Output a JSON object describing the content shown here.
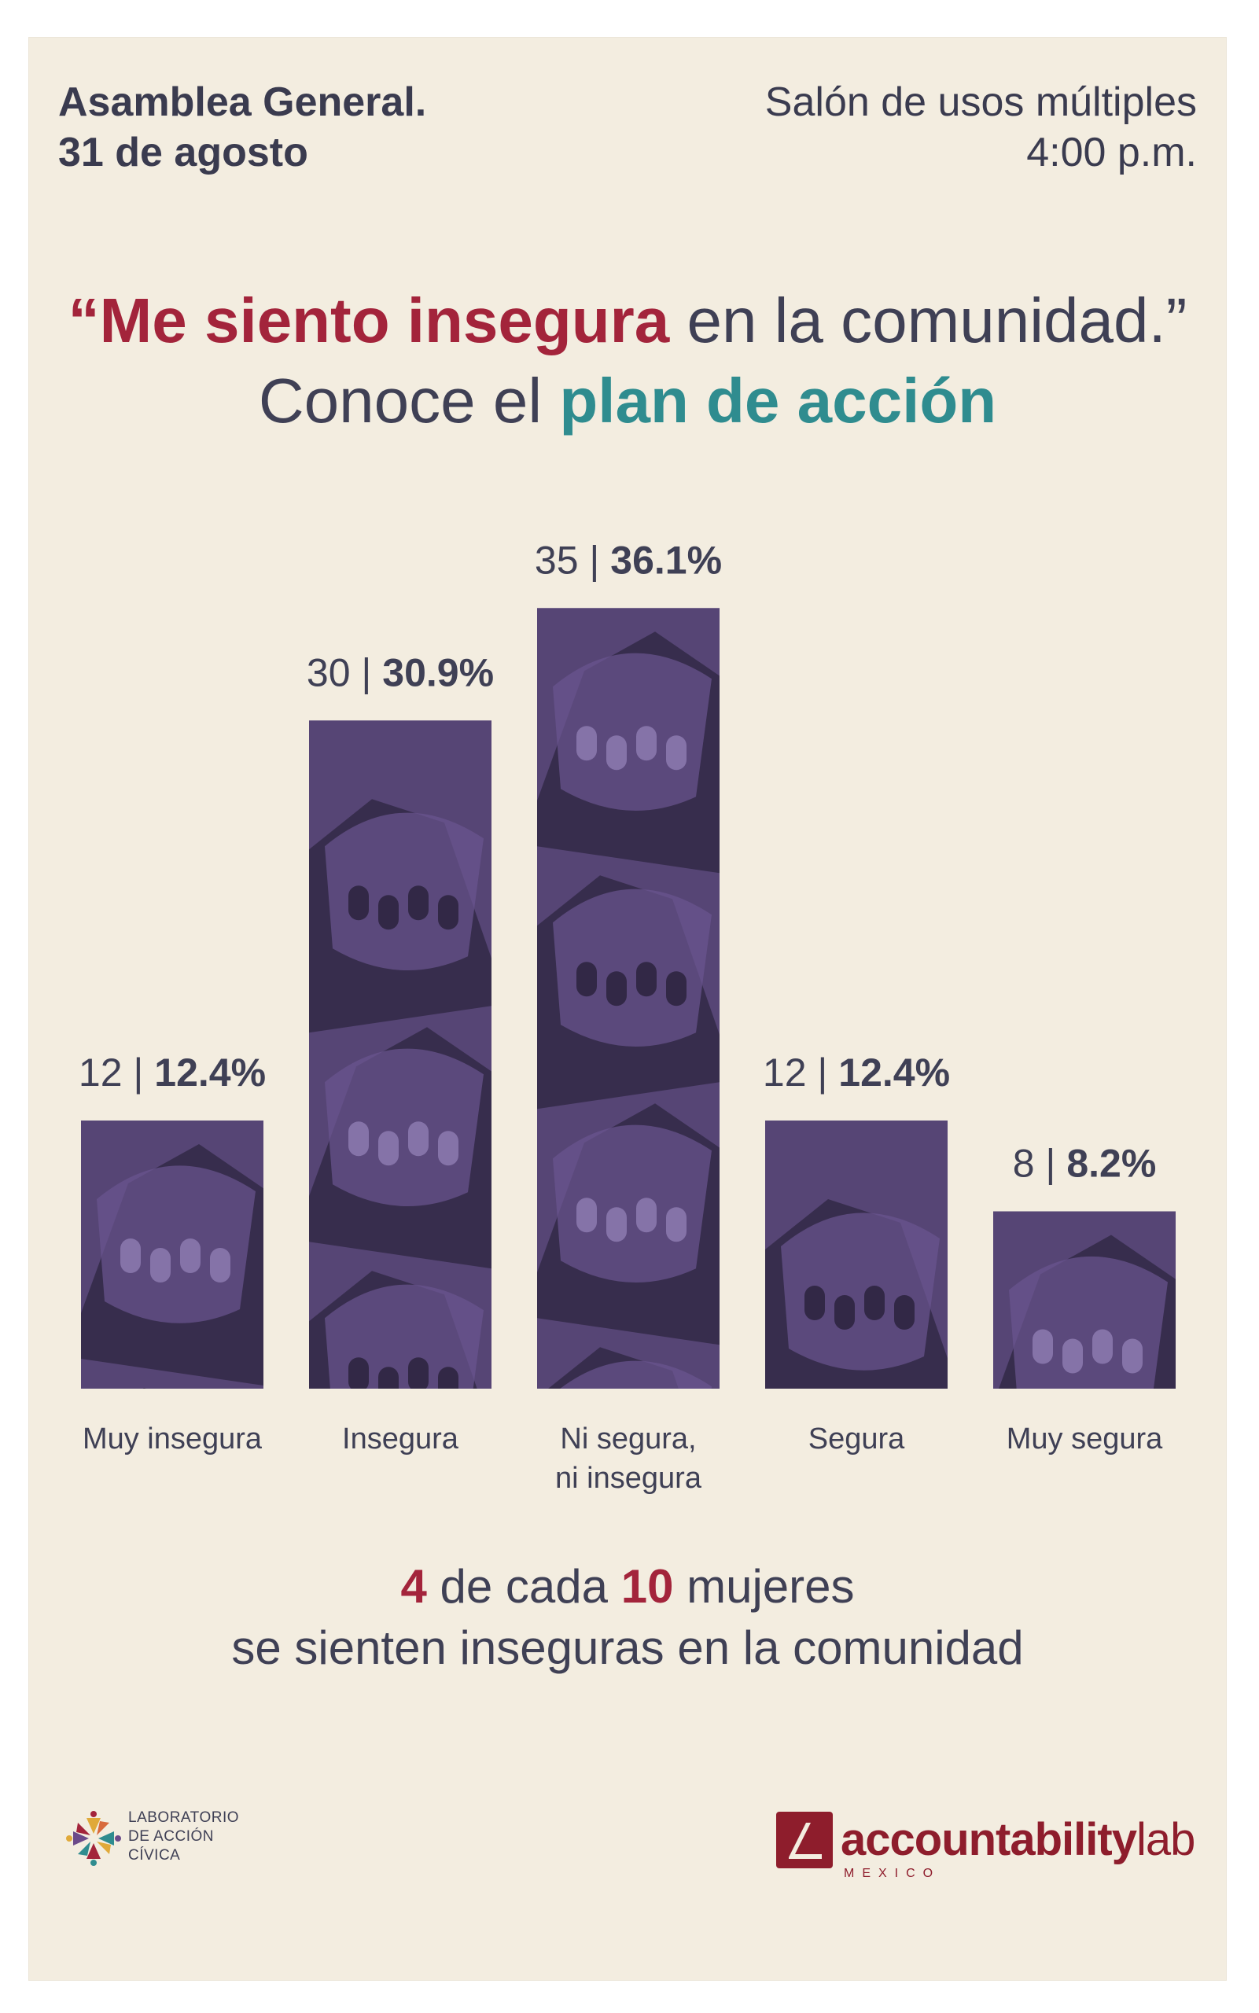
{
  "header": {
    "left_line1": "Asamblea General.",
    "left_line2": "31 de agosto",
    "right_line1": "Salón de usos múltiples",
    "right_line2": "4:00 p.m."
  },
  "headline": {
    "line1_open_quote": "“",
    "line1_highlight": "Me siento insegura",
    "line1_rest": " en la comunidad.”",
    "line2_plain": "Conoce el ",
    "line2_highlight": "plan de acción"
  },
  "chart_data": {
    "type": "bar",
    "categories": [
      "Muy insegura",
      "Insegura",
      "Ni segura, ni insegura",
      "Segura",
      "Muy segura"
    ],
    "category_lines": [
      [
        "Muy insegura"
      ],
      [
        "Insegura"
      ],
      [
        "Ni segura,",
        "ni insegura"
      ],
      [
        "Segura"
      ],
      [
        "Muy segura"
      ]
    ],
    "counts": [
      12,
      30,
      35,
      12,
      8
    ],
    "percents": [
      "12.4%",
      "30.9%",
      "36.1%",
      "12.4%",
      "8.2%"
    ],
    "values": [
      12.4,
      30.9,
      36.1,
      12.4,
      8.2
    ],
    "title": "",
    "xlabel": "",
    "ylabel": "",
    "grid": false,
    "colors": {
      "bar": "#564575",
      "bar_dark": "#2e2540",
      "bar_light": "#6b5690",
      "nail": "#8a78ad",
      "label": "#3f4055"
    }
  },
  "summary": {
    "num1": "4",
    "text1": " de cada ",
    "num2": "10",
    "text2": " mujeres",
    "line2": "se sienten inseguras en la comunidad"
  },
  "logos": {
    "lab_line1": "LABORATORIO",
    "lab_line2": "DE ACCIÓN",
    "lab_line3": "CÍVICA",
    "al_word_bold": "accountability",
    "al_word_light": "lab",
    "al_sub": "MEXICO"
  }
}
